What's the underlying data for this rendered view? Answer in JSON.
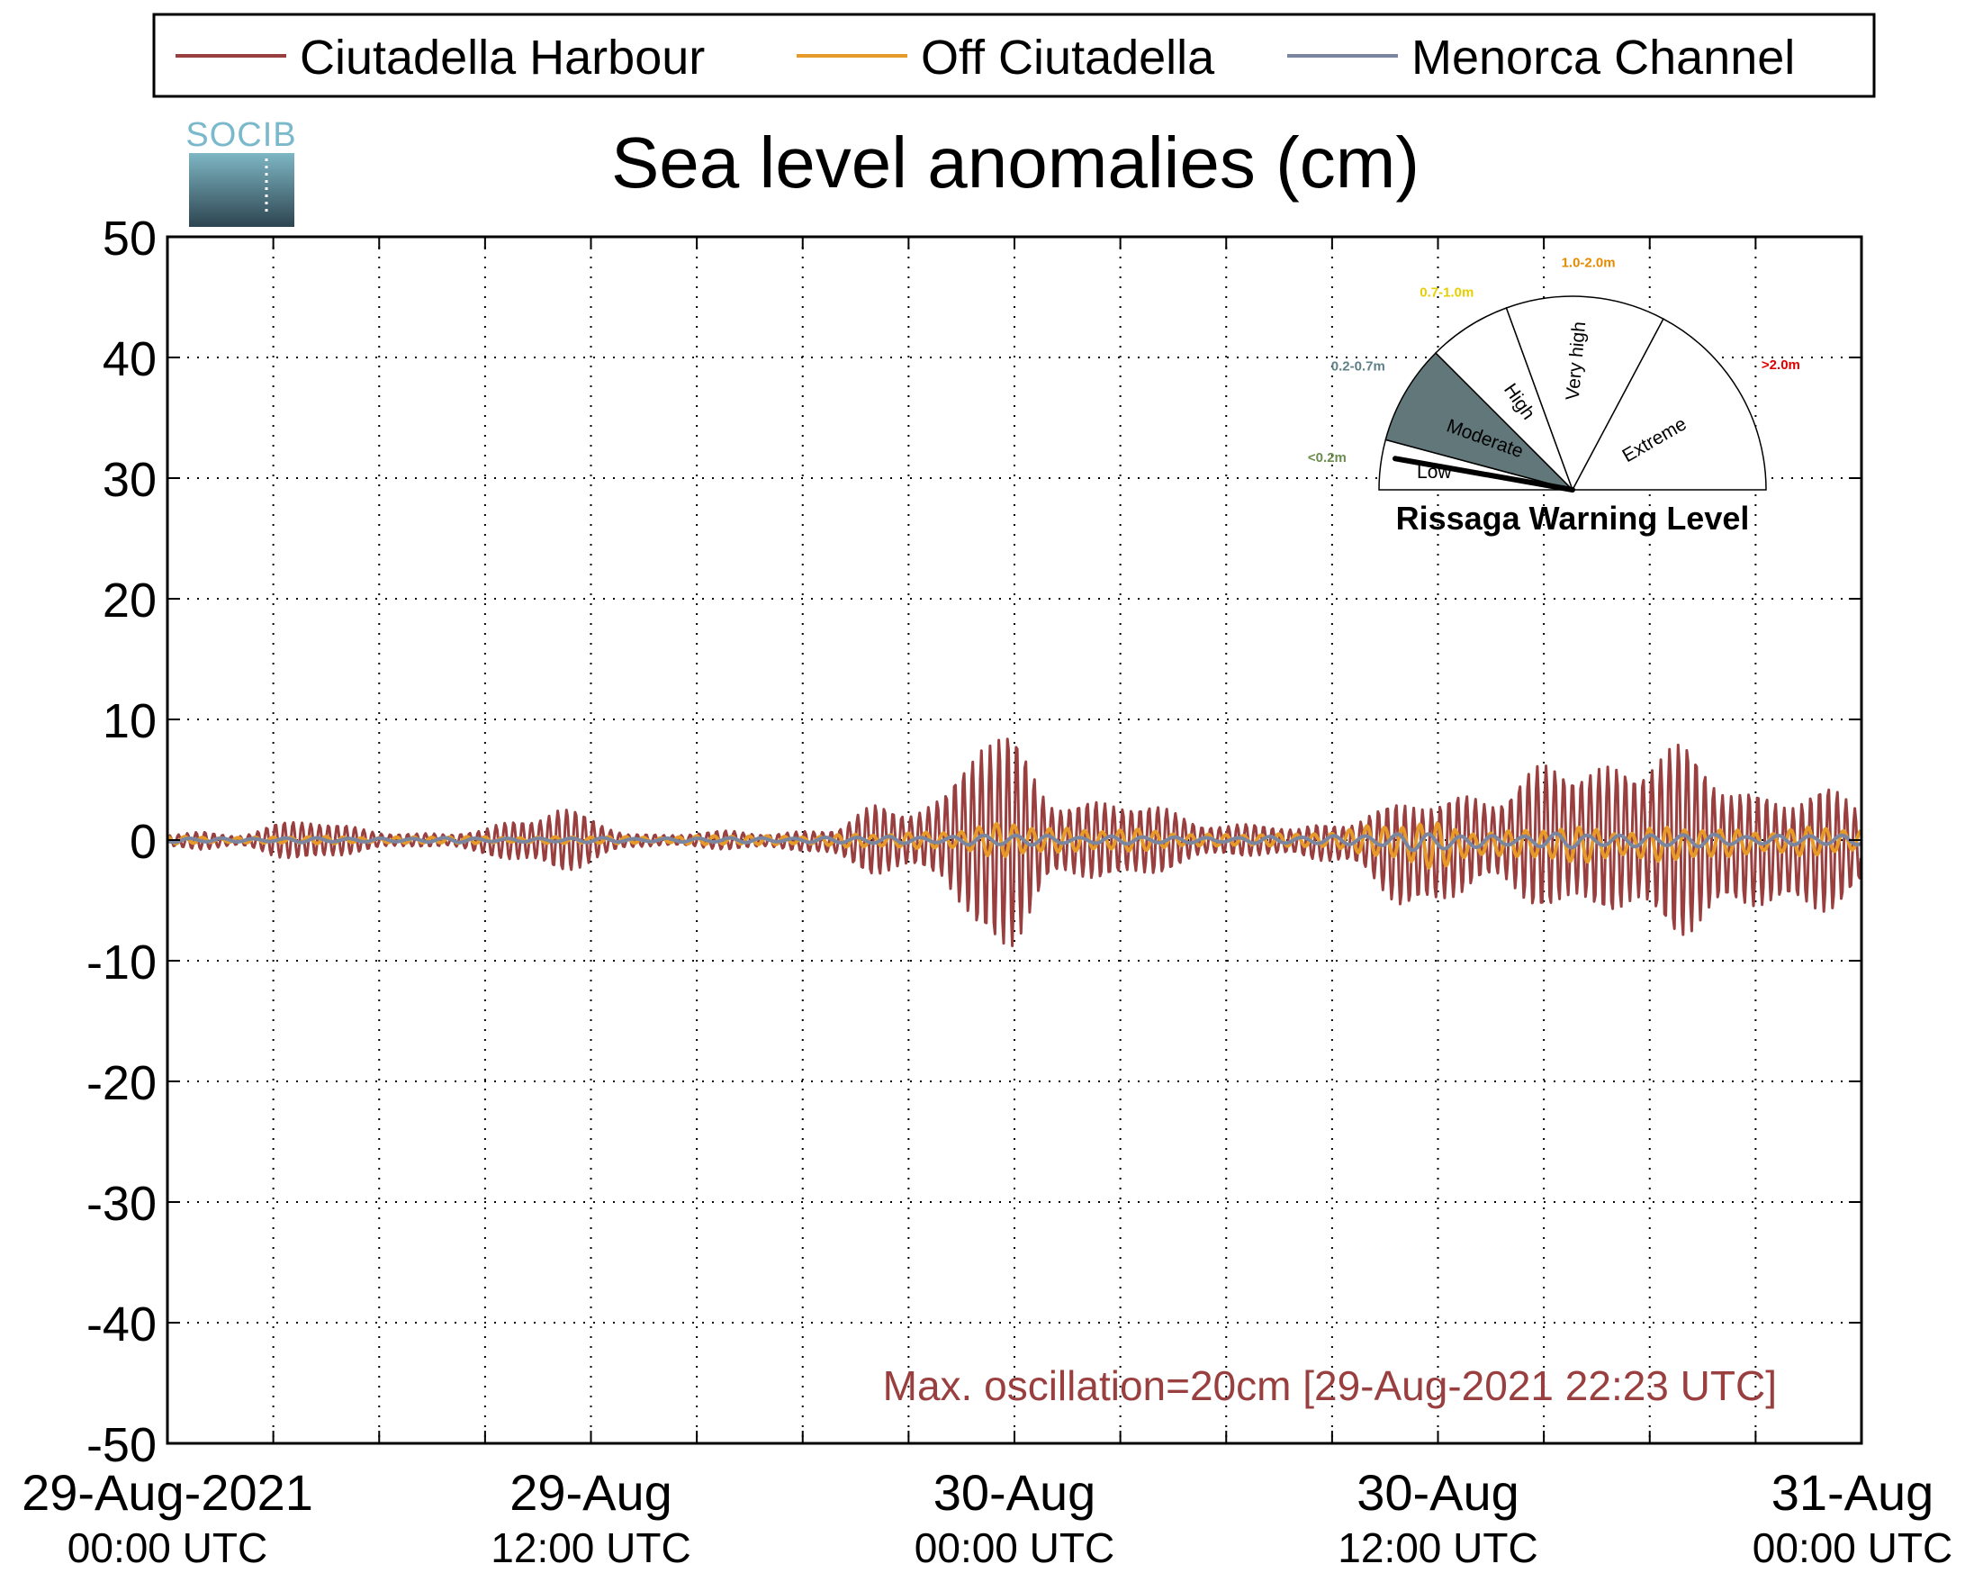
{
  "logo": {
    "text": "SOCIB"
  },
  "chart_data": {
    "type": "line",
    "title": "Sea level anomalies (cm)",
    "xlabel": "",
    "ylabel": "",
    "ylim": [
      -50,
      50
    ],
    "yticks": [
      50,
      40,
      30,
      20,
      10,
      0,
      -10,
      -20,
      -30,
      -40,
      -50
    ],
    "xlim_hours": [
      0,
      48
    ],
    "x_tick_labels": [
      {
        "hours": 0,
        "line1": "29-Aug-2021",
        "line2": "00:00 UTC"
      },
      {
        "hours": 12,
        "line1": "29-Aug",
        "line2": "12:00 UTC"
      },
      {
        "hours": 24,
        "line1": "30-Aug",
        "line2": "00:00 UTC"
      },
      {
        "hours": 36,
        "line1": "30-Aug",
        "line2": "12:00 UTC"
      },
      {
        "hours": 48,
        "line1": "31-Aug",
        "line2": "00:00 UTC"
      }
    ],
    "grid": true,
    "legend_position": "top",
    "colors": {
      "Ciutadella Harbour": "#9a3f3f",
      "Off Ciutadella": "#e69a2a",
      "Menorca Channel": "#7a86a0"
    },
    "series": [
      {
        "name": "Ciutadella Harbour",
        "x_hours": [
          0,
          1,
          2,
          3,
          4,
          5,
          6,
          7,
          8,
          9,
          10,
          11,
          12,
          13,
          14,
          15,
          16,
          17,
          18,
          19,
          20,
          21,
          22,
          23,
          24,
          25,
          26,
          27,
          28,
          29,
          30,
          31,
          32,
          33,
          34,
          35,
          36,
          37,
          38,
          39,
          40,
          41,
          42,
          43,
          44,
          45,
          46,
          47,
          48
        ],
        "envelope_max": [
          0.5,
          0.8,
          0.6,
          1.5,
          1.8,
          1.5,
          1,
          0.6,
          0.5,
          1.2,
          2.5,
          3,
          2,
          0.7,
          0.6,
          0.7,
          0.8,
          0.7,
          1,
          1.2,
          3,
          3.5,
          4.5,
          10.5,
          9,
          5,
          4,
          3.5,
          3,
          2.5,
          1.5,
          1.5,
          1,
          2,
          3,
          3.5,
          4,
          5,
          5.5,
          6.5,
          7,
          8,
          9.5,
          8,
          6,
          5.5,
          5,
          4.5,
          3.5
        ],
        "envelope_min": [
          -0.6,
          -0.9,
          -0.7,
          -1.5,
          -1.8,
          -1.5,
          -1,
          -0.6,
          -0.5,
          -1.5,
          -2.5,
          -3,
          -2,
          -0.8,
          -0.6,
          -0.7,
          -0.8,
          -0.8,
          -1.2,
          -1.5,
          -3,
          -3.5,
          -4,
          -10.5,
          -9,
          -5,
          -4,
          -3.5,
          -3,
          -2.5,
          -1.5,
          -1.5,
          -1.2,
          -2.5,
          -3.5,
          -6,
          -6,
          -5,
          -5.5,
          -6,
          -6.5,
          -8,
          -9,
          -8,
          -7,
          -7,
          -7,
          -6,
          -4.5
        ]
      },
      {
        "name": "Off Ciutadella",
        "x_hours": [
          0,
          4,
          8,
          12,
          16,
          20,
          22,
          24,
          26,
          28,
          30,
          32,
          34,
          36,
          38,
          40,
          42,
          44,
          46,
          48
        ],
        "envelope_max": [
          0.3,
          0.3,
          0.3,
          0.3,
          0.4,
          0.5,
          1,
          1.5,
          1.2,
          0.8,
          0.6,
          0.5,
          1.5,
          1.5,
          1,
          1.2,
          1.3,
          1,
          1.2,
          1
        ],
        "envelope_min": [
          -0.3,
          -0.3,
          -0.3,
          -0.3,
          -0.4,
          -0.6,
          -1,
          -1.5,
          -1.2,
          -0.8,
          -0.6,
          -0.5,
          -1.5,
          -2.5,
          -1.5,
          -2,
          -2,
          -1.5,
          -1.5,
          -1
        ]
      },
      {
        "name": "Menorca Channel",
        "x_hours": [
          0,
          4,
          8,
          12,
          16,
          20,
          22,
          24,
          26,
          28,
          30,
          32,
          34,
          36,
          38,
          40,
          42,
          44,
          46,
          48
        ],
        "envelope_max": [
          0.2,
          0.2,
          0.2,
          0.2,
          0.2,
          0.3,
          0.4,
          0.5,
          0.4,
          0.3,
          0.3,
          0.3,
          0.6,
          0.6,
          0.5,
          0.6,
          0.6,
          0.5,
          0.5,
          0.4
        ],
        "envelope_min": [
          -0.2,
          -0.2,
          -0.2,
          -0.2,
          -0.2,
          -0.3,
          -0.4,
          -0.5,
          -0.4,
          -0.3,
          -0.3,
          -0.3,
          -0.6,
          -1,
          -0.6,
          -0.7,
          -0.7,
          -0.5,
          -0.5,
          -0.4
        ]
      }
    ],
    "annotations": [
      {
        "text": "Max. oscillation=20cm [29-Aug-2021 22:23 UTC]",
        "color": "#9a3f3f"
      }
    ]
  },
  "gauge": {
    "title": "Rissaga Warning Level",
    "current_level": "Low",
    "segments": [
      {
        "label": "Low",
        "range": "<0.2m",
        "range_color": "#6b8e4e",
        "fill": "#ffffff"
      },
      {
        "label": "Moderate",
        "range": "0.2-0.7m",
        "range_color": "#5f7f87",
        "fill": "#61777a"
      },
      {
        "label": "High",
        "range": "0.7-1.0m",
        "range_color": "#e6cf00",
        "fill": "#ffffff"
      },
      {
        "label": "Very high",
        "range": "1.0-2.0m",
        "range_color": "#e68a00",
        "fill": "#ffffff"
      },
      {
        "label": "Extreme",
        "range": ">2.0m",
        "range_color": "#e00000",
        "fill": "#ffffff"
      }
    ]
  }
}
